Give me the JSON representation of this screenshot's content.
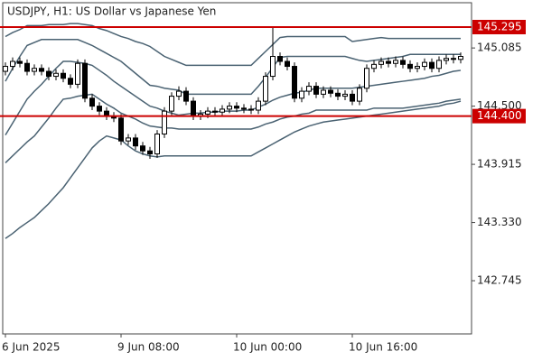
{
  "chart_data": {
    "type": "candlestick",
    "title": "USDJPY, H1:  US Dollar vs Japanese Yen",
    "categories": [
      "6 Jun 2025",
      null,
      null,
      null,
      null,
      null,
      null,
      null,
      null,
      null,
      null,
      null,
      null,
      null,
      null,
      null,
      "9 Jun 08:00",
      null,
      null,
      null,
      null,
      null,
      null,
      null,
      null,
      null,
      null,
      null,
      null,
      null,
      null,
      null,
      "10 Jun 00:00",
      null,
      null,
      null,
      null,
      null,
      null,
      null,
      null,
      null,
      null,
      null,
      null,
      null,
      null,
      null,
      "10 Jun 16:00",
      null,
      null,
      null,
      null,
      null,
      null,
      null,
      null,
      null,
      null,
      null,
      null,
      null,
      null,
      null
    ],
    "open": [
      144.85,
      144.9,
      144.95,
      144.93,
      144.85,
      144.88,
      144.85,
      144.8,
      144.83,
      144.78,
      144.72,
      144.93,
      144.58,
      144.5,
      144.45,
      144.4,
      144.38,
      144.15,
      144.18,
      144.1,
      144.05,
      144.02,
      144.22,
      144.45,
      144.6,
      144.65,
      144.55,
      144.4,
      144.42,
      144.45,
      144.44,
      144.47,
      144.5,
      144.48,
      144.47,
      144.46,
      144.55,
      144.8,
      145.0,
      144.95,
      144.9,
      144.58,
      144.65,
      144.7,
      144.62,
      144.66,
      144.63,
      144.6,
      144.62,
      144.55,
      144.68,
      144.88,
      144.92,
      144.95,
      144.93,
      144.96,
      144.92,
      144.88,
      144.9,
      144.94,
      144.88,
      144.96,
      144.98,
      144.97
    ],
    "high": [
      144.94,
      144.99,
      144.99,
      144.97,
      144.92,
      144.92,
      144.89,
      144.87,
      144.87,
      144.82,
      144.97,
      144.97,
      144.62,
      144.54,
      144.49,
      144.44,
      144.42,
      144.22,
      144.22,
      144.14,
      144.09,
      144.26,
      144.49,
      144.64,
      144.7,
      144.69,
      144.59,
      144.46,
      144.49,
      144.49,
      144.51,
      144.54,
      144.54,
      144.52,
      144.51,
      144.59,
      144.84,
      145.3,
      145.04,
      144.99,
      144.94,
      144.69,
      144.74,
      144.74,
      144.7,
      144.7,
      144.67,
      144.66,
      144.66,
      144.72,
      144.92,
      144.96,
      144.99,
      144.99,
      145.0,
      145.0,
      144.96,
      144.94,
      144.98,
      144.98,
      145.0,
      145.02,
      145.02,
      145.04
    ],
    "low": [
      144.81,
      144.86,
      144.89,
      144.81,
      144.81,
      144.81,
      144.76,
      144.76,
      144.74,
      144.68,
      144.68,
      144.54,
      144.46,
      144.41,
      144.36,
      144.34,
      144.11,
      144.11,
      144.06,
      144.01,
      143.97,
      143.98,
      144.18,
      144.41,
      144.56,
      144.51,
      144.36,
      144.36,
      144.38,
      144.4,
      144.4,
      144.43,
      144.44,
      144.43,
      144.42,
      144.42,
      144.51,
      144.76,
      144.91,
      144.86,
      144.54,
      144.54,
      144.61,
      144.58,
      144.58,
      144.59,
      144.56,
      144.56,
      144.51,
      144.51,
      144.64,
      144.84,
      144.88,
      144.89,
      144.89,
      144.88,
      144.84,
      144.84,
      144.86,
      144.84,
      144.84,
      144.92,
      144.93,
      144.93
    ],
    "close": [
      144.9,
      144.95,
      144.93,
      144.85,
      144.88,
      144.85,
      144.8,
      144.83,
      144.78,
      144.72,
      144.93,
      144.58,
      144.5,
      144.45,
      144.4,
      144.38,
      144.15,
      144.18,
      144.1,
      144.05,
      144.02,
      144.22,
      144.45,
      144.6,
      144.65,
      144.55,
      144.4,
      144.42,
      144.45,
      144.44,
      144.47,
      144.5,
      144.48,
      144.47,
      144.46,
      144.55,
      144.8,
      145.0,
      144.95,
      144.9,
      144.58,
      144.65,
      144.7,
      144.62,
      144.66,
      144.63,
      144.6,
      144.62,
      144.55,
      144.68,
      144.88,
      144.92,
      144.95,
      144.93,
      144.96,
      144.92,
      144.88,
      144.9,
      144.94,
      144.88,
      144.96,
      144.98,
      144.97,
      145.0
    ],
    "up_color": "#ffffff",
    "down_color": "#000000",
    "bands": [
      {
        "color": "#4a6272",
        "values": [
          145.2,
          145.24,
          145.27,
          145.31,
          145.31,
          145.31,
          145.32,
          145.32,
          145.32,
          145.33,
          145.33,
          145.32,
          145.31,
          145.28,
          145.26,
          145.23,
          145.2,
          145.18,
          145.15,
          145.13,
          145.1,
          145.05,
          145.0,
          144.97,
          144.94,
          144.91,
          144.91,
          144.91,
          144.91,
          144.91,
          144.91,
          144.91,
          144.91,
          144.91,
          144.91,
          144.98,
          145.05,
          145.12,
          145.19,
          145.2,
          145.2,
          145.2,
          145.2,
          145.2,
          145.2,
          145.2,
          145.2,
          145.2,
          145.15,
          145.16,
          145.17,
          145.18,
          145.19,
          145.18,
          145.18,
          145.18,
          145.18,
          145.18,
          145.18,
          145.18,
          145.18,
          145.18,
          145.18,
          145.18
        ]
      },
      {
        "color": "#4a6272",
        "values": [
          144.75,
          144.88,
          145.0,
          145.11,
          145.14,
          145.17,
          145.17,
          145.17,
          145.17,
          145.17,
          145.17,
          145.14,
          145.11,
          145.07,
          145.03,
          144.99,
          144.95,
          144.89,
          144.83,
          144.77,
          144.71,
          144.7,
          144.68,
          144.67,
          144.66,
          144.62,
          144.62,
          144.62,
          144.62,
          144.62,
          144.62,
          144.62,
          144.62,
          144.62,
          144.62,
          144.7,
          144.79,
          144.89,
          144.99,
          145.0,
          145.0,
          145.0,
          145.0,
          145.0,
          145.0,
          145.0,
          145.0,
          145.0,
          144.98,
          144.96,
          144.95,
          144.96,
          144.97,
          144.98,
          144.99,
          145.0,
          145.02,
          145.02,
          145.02,
          145.02,
          145.02,
          145.02,
          145.02,
          145.02
        ]
      },
      {
        "color": "#4a6272",
        "values": [
          144.21,
          144.33,
          144.45,
          144.57,
          144.65,
          144.72,
          144.8,
          144.88,
          144.95,
          144.95,
          144.94,
          144.93,
          144.91,
          144.86,
          144.81,
          144.75,
          144.7,
          144.65,
          144.6,
          144.55,
          144.5,
          144.48,
          144.45,
          144.43,
          144.41,
          144.42,
          144.43,
          144.43,
          144.44,
          144.44,
          144.45,
          144.45,
          144.45,
          144.46,
          144.46,
          144.49,
          144.52,
          144.56,
          144.59,
          144.61,
          144.63,
          144.64,
          144.66,
          144.68,
          144.68,
          144.68,
          144.68,
          144.68,
          144.68,
          144.69,
          144.7,
          144.71,
          144.72,
          144.73,
          144.74,
          144.75,
          144.76,
          144.77,
          144.78,
          144.8,
          144.81,
          144.83,
          144.85,
          144.86
        ]
      },
      {
        "color": "#4a6272",
        "values": [
          143.93,
          144.0,
          144.07,
          144.14,
          144.2,
          144.29,
          144.38,
          144.48,
          144.57,
          144.58,
          144.6,
          144.61,
          144.62,
          144.57,
          144.52,
          144.48,
          144.43,
          144.4,
          144.37,
          144.33,
          144.3,
          144.29,
          144.28,
          144.28,
          144.27,
          144.27,
          144.27,
          144.27,
          144.27,
          144.27,
          144.27,
          144.27,
          144.27,
          144.27,
          144.27,
          144.29,
          144.32,
          144.34,
          144.37,
          144.39,
          144.4,
          144.42,
          144.43,
          144.46,
          144.46,
          144.46,
          144.46,
          144.46,
          144.46,
          144.46,
          144.46,
          144.48,
          144.48,
          144.48,
          144.48,
          144.48,
          144.49,
          144.5,
          144.51,
          144.52,
          144.53,
          144.55,
          144.56,
          144.57
        ]
      },
      {
        "color": "#4a6272",
        "values": [
          143.17,
          143.22,
          143.28,
          143.33,
          143.38,
          143.45,
          143.52,
          143.6,
          143.68,
          143.78,
          143.88,
          143.98,
          144.08,
          144.15,
          144.2,
          144.18,
          144.16,
          144.1,
          144.05,
          144.02,
          144.0,
          143.99,
          144.0,
          144.0,
          144.0,
          144.0,
          144.0,
          144.0,
          144.0,
          144.0,
          144.0,
          144.0,
          144.0,
          144.0,
          144.0,
          144.04,
          144.08,
          144.12,
          144.16,
          144.2,
          144.24,
          144.27,
          144.3,
          144.32,
          144.34,
          144.35,
          144.36,
          144.37,
          144.38,
          144.39,
          144.4,
          144.41,
          144.42,
          144.43,
          144.44,
          144.45,
          144.46,
          144.47,
          144.48,
          144.49,
          144.5,
          144.52,
          144.53,
          144.55
        ]
      }
    ],
    "hlines": [
      {
        "value": 145.295,
        "color": "#cc0000"
      },
      {
        "value": 144.4,
        "label": "144.400",
        "color": "#cc0000"
      }
    ],
    "ylim": [
      142.21,
      145.54
    ],
    "yticks": [
      145.085,
      {
        "value": 144.5,
        "label": "144.500"
      },
      143.915,
      {
        "value": 143.33,
        "label": "143.330"
      },
      142.745
    ]
  }
}
